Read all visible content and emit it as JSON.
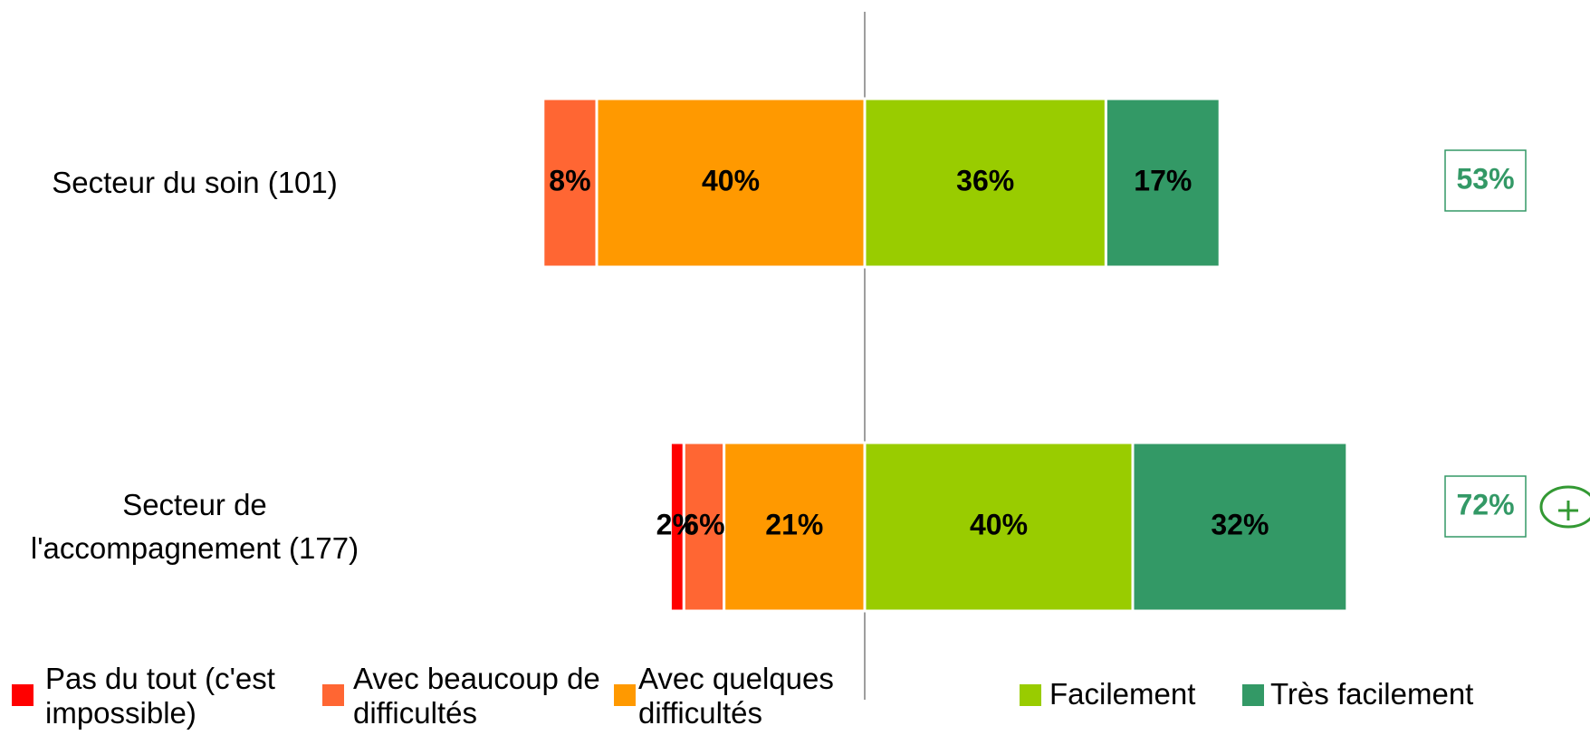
{
  "chart_data": {
    "type": "diverging_bar",
    "categories": [
      "Secteur du soin (101)",
      "Secteur de\nl'accompagnement (177)"
    ],
    "series": [
      {
        "name": "Pas du tout (c'est impossible)",
        "color": "#ff0000",
        "values": [
          null,
          2
        ],
        "value_labels": [
          null,
          "2%"
        ]
      },
      {
        "name": "Avec beaucoup de difficultés",
        "color": "#ff6633",
        "values": [
          8,
          6
        ],
        "value_labels": [
          "8%",
          "6%"
        ]
      },
      {
        "name": "Avec quelques difficultés",
        "color": "#ff9900",
        "values": [
          40,
          21
        ],
        "value_labels": [
          "40%",
          "21%"
        ]
      },
      {
        "name": "Facilement",
        "color": "#99cc00",
        "values": [
          36,
          40
        ],
        "value_labels": [
          "36%",
          "40%"
        ]
      },
      {
        "name": "Très facilement",
        "color": "#339966",
        "values": [
          17,
          32
        ],
        "value_labels": [
          "17%",
          "32%"
        ]
      }
    ],
    "totals": {
      "color": "#339966",
      "values": [
        53,
        72
      ],
      "value_labels": [
        "53%",
        "72%"
      ]
    }
  }
}
